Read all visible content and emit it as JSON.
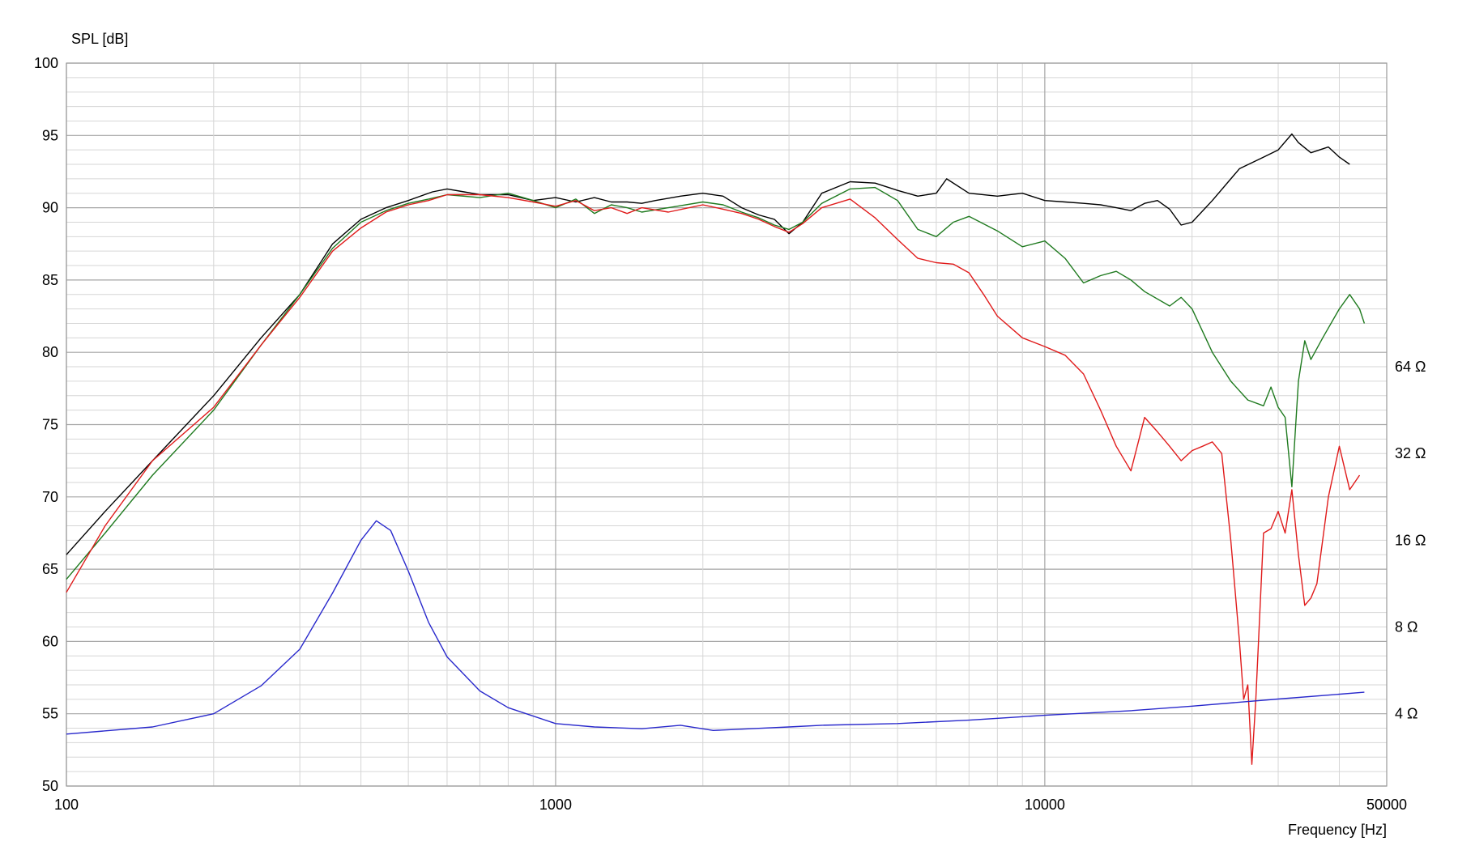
{
  "chart_data": {
    "type": "line",
    "ylabel": "SPL [dB]",
    "xlabel": "Frequency [Hz]",
    "x_scale": "log",
    "xlim": [
      100,
      50000
    ],
    "ylim": [
      50,
      100
    ],
    "x_tick_labels": [
      {
        "value": 100,
        "label": "100"
      },
      {
        "value": 1000,
        "label": "1000"
      },
      {
        "value": 10000,
        "label": "10000"
      },
      {
        "value": 50000,
        "label": "50000"
      }
    ],
    "y_ticks": [
      50,
      55,
      60,
      65,
      70,
      75,
      80,
      85,
      90,
      95,
      100
    ],
    "y2_ticks": [
      {
        "value": 4,
        "label": "4 Ω"
      },
      {
        "value": 8,
        "label": "8 Ω"
      },
      {
        "value": 16,
        "label": "16 Ω"
      },
      {
        "value": 32,
        "label": "32 Ω"
      },
      {
        "value": 64,
        "label": "64 Ω"
      }
    ],
    "y2_scale": "log2",
    "y2_reference": {
      "ohm_at_spl55": 4,
      "spl_per_octave": 6
    },
    "grid": true,
    "series": [
      {
        "color": "#000000",
        "axis": "spl",
        "points": [
          [
            100,
            66
          ],
          [
            120,
            69
          ],
          [
            150,
            72.5
          ],
          [
            200,
            77
          ],
          [
            250,
            81
          ],
          [
            300,
            84
          ],
          [
            350,
            87.5
          ],
          [
            400,
            89.2
          ],
          [
            450,
            90
          ],
          [
            500,
            90.5
          ],
          [
            560,
            91.1
          ],
          [
            600,
            91.3
          ],
          [
            650,
            91.1
          ],
          [
            700,
            90.9
          ],
          [
            800,
            90.9
          ],
          [
            900,
            90.5
          ],
          [
            1000,
            90.7
          ],
          [
            1100,
            90.4
          ],
          [
            1200,
            90.7
          ],
          [
            1300,
            90.4
          ],
          [
            1400,
            90.4
          ],
          [
            1500,
            90.3
          ],
          [
            1600,
            90.5
          ],
          [
            1800,
            90.8
          ],
          [
            2000,
            91
          ],
          [
            2200,
            90.8
          ],
          [
            2400,
            90
          ],
          [
            2600,
            89.5
          ],
          [
            2800,
            89.2
          ],
          [
            3000,
            88.2
          ],
          [
            3200,
            89
          ],
          [
            3500,
            91
          ],
          [
            4000,
            91.8
          ],
          [
            4500,
            91.7
          ],
          [
            5000,
            91.2
          ],
          [
            5500,
            90.8
          ],
          [
            6000,
            91
          ],
          [
            6300,
            92
          ],
          [
            7000,
            91
          ],
          [
            8000,
            90.8
          ],
          [
            9000,
            91
          ],
          [
            10000,
            90.5
          ],
          [
            11000,
            90.4
          ],
          [
            12000,
            90.3
          ],
          [
            13000,
            90.2
          ],
          [
            14000,
            90
          ],
          [
            15000,
            89.8
          ],
          [
            16000,
            90.3
          ],
          [
            17000,
            90.5
          ],
          [
            18000,
            89.9
          ],
          [
            19000,
            88.8
          ],
          [
            20000,
            89
          ],
          [
            22000,
            90.5
          ],
          [
            25000,
            92.7
          ],
          [
            28000,
            93.5
          ],
          [
            30000,
            94
          ],
          [
            32000,
            95.1
          ],
          [
            33000,
            94.5
          ],
          [
            35000,
            93.8
          ],
          [
            38000,
            94.2
          ],
          [
            40000,
            93.5
          ],
          [
            42000,
            93
          ]
        ]
      },
      {
        "color": "#1f7a1f",
        "axis": "spl",
        "points": [
          [
            100,
            64.3
          ],
          [
            120,
            67.5
          ],
          [
            150,
            71.5
          ],
          [
            200,
            76
          ],
          [
            250,
            80.5
          ],
          [
            300,
            84
          ],
          [
            350,
            87.2
          ],
          [
            400,
            89
          ],
          [
            450,
            89.8
          ],
          [
            500,
            90.3
          ],
          [
            550,
            90.6
          ],
          [
            600,
            90.9
          ],
          [
            700,
            90.7
          ],
          [
            800,
            91
          ],
          [
            900,
            90.5
          ],
          [
            1000,
            90
          ],
          [
            1100,
            90.6
          ],
          [
            1200,
            89.6
          ],
          [
            1300,
            90.2
          ],
          [
            1400,
            90
          ],
          [
            1500,
            89.7
          ],
          [
            1700,
            90
          ],
          [
            2000,
            90.4
          ],
          [
            2200,
            90.2
          ],
          [
            2400,
            89.7
          ],
          [
            2600,
            89.3
          ],
          [
            2800,
            88.8
          ],
          [
            3000,
            88.5
          ],
          [
            3200,
            89
          ],
          [
            3500,
            90.3
          ],
          [
            4000,
            91.3
          ],
          [
            4500,
            91.4
          ],
          [
            5000,
            90.5
          ],
          [
            5500,
            88.5
          ],
          [
            6000,
            88
          ],
          [
            6500,
            89
          ],
          [
            7000,
            89.4
          ],
          [
            8000,
            88.4
          ],
          [
            9000,
            87.3
          ],
          [
            10000,
            87.7
          ],
          [
            11000,
            86.5
          ],
          [
            12000,
            84.8
          ],
          [
            13000,
            85.3
          ],
          [
            14000,
            85.6
          ],
          [
            15000,
            85
          ],
          [
            16000,
            84.2
          ],
          [
            18000,
            83.2
          ],
          [
            19000,
            83.8
          ],
          [
            20000,
            83
          ],
          [
            22000,
            80
          ],
          [
            24000,
            78
          ],
          [
            26000,
            76.7
          ],
          [
            28000,
            76.3
          ],
          [
            29000,
            77.6
          ],
          [
            30000,
            76.2
          ],
          [
            31000,
            75.5
          ],
          [
            32000,
            70.7
          ],
          [
            33000,
            78
          ],
          [
            34000,
            80.8
          ],
          [
            35000,
            79.5
          ],
          [
            37000,
            81
          ],
          [
            40000,
            83
          ],
          [
            42000,
            84
          ],
          [
            44000,
            83
          ],
          [
            45000,
            82
          ]
        ]
      },
      {
        "color": "#e01b1b",
        "axis": "spl",
        "points": [
          [
            100,
            63.4
          ],
          [
            120,
            68
          ],
          [
            150,
            72.5
          ],
          [
            200,
            76.2
          ],
          [
            250,
            80.5
          ],
          [
            300,
            83.8
          ],
          [
            350,
            87
          ],
          [
            400,
            88.6
          ],
          [
            450,
            89.7
          ],
          [
            500,
            90.2
          ],
          [
            550,
            90.5
          ],
          [
            600,
            90.9
          ],
          [
            700,
            90.9
          ],
          [
            800,
            90.7
          ],
          [
            900,
            90.4
          ],
          [
            1000,
            90.1
          ],
          [
            1100,
            90.5
          ],
          [
            1200,
            89.8
          ],
          [
            1300,
            90
          ],
          [
            1400,
            89.6
          ],
          [
            1500,
            90
          ],
          [
            1700,
            89.7
          ],
          [
            2000,
            90.2
          ],
          [
            2200,
            89.9
          ],
          [
            2400,
            89.6
          ],
          [
            2600,
            89.2
          ],
          [
            2800,
            88.7
          ],
          [
            3000,
            88.3
          ],
          [
            3200,
            88.9
          ],
          [
            3500,
            90
          ],
          [
            4000,
            90.6
          ],
          [
            4500,
            89.3
          ],
          [
            5000,
            87.8
          ],
          [
            5500,
            86.5
          ],
          [
            6000,
            86.2
          ],
          [
            6500,
            86.1
          ],
          [
            7000,
            85.5
          ],
          [
            7500,
            84
          ],
          [
            8000,
            82.5
          ],
          [
            9000,
            81
          ],
          [
            10000,
            80.4
          ],
          [
            11000,
            79.8
          ],
          [
            12000,
            78.5
          ],
          [
            13000,
            76
          ],
          [
            14000,
            73.5
          ],
          [
            15000,
            71.8
          ],
          [
            16000,
            75.5
          ],
          [
            17000,
            74.5
          ],
          [
            18000,
            73.5
          ],
          [
            19000,
            72.5
          ],
          [
            20000,
            73.2
          ],
          [
            21000,
            73.5
          ],
          [
            22000,
            73.8
          ],
          [
            23000,
            73
          ],
          [
            24000,
            67
          ],
          [
            25000,
            60
          ],
          [
            25500,
            56
          ],
          [
            26000,
            57
          ],
          [
            26500,
            51.5
          ],
          [
            27000,
            56
          ],
          [
            28000,
            67.5
          ],
          [
            29000,
            67.8
          ],
          [
            30000,
            69
          ],
          [
            31000,
            67.5
          ],
          [
            32000,
            70.5
          ],
          [
            33000,
            66
          ],
          [
            34000,
            62.5
          ],
          [
            35000,
            63
          ],
          [
            36000,
            64
          ],
          [
            38000,
            70
          ],
          [
            40000,
            73.5
          ],
          [
            42000,
            70.5
          ],
          [
            44000,
            71.5
          ]
        ]
      },
      {
        "color": "#2929cc",
        "axis": "impedance",
        "points": [
          [
            100,
            3.4
          ],
          [
            150,
            3.6
          ],
          [
            200,
            4
          ],
          [
            250,
            5
          ],
          [
            300,
            6.7
          ],
          [
            350,
            10.5
          ],
          [
            400,
            16
          ],
          [
            430,
            18.7
          ],
          [
            460,
            17.3
          ],
          [
            500,
            12.5
          ],
          [
            550,
            8.3
          ],
          [
            600,
            6.3
          ],
          [
            700,
            4.8
          ],
          [
            800,
            4.2
          ],
          [
            1000,
            3.7
          ],
          [
            1200,
            3.6
          ],
          [
            1500,
            3.55
          ],
          [
            1800,
            3.65
          ],
          [
            2100,
            3.5
          ],
          [
            2500,
            3.55
          ],
          [
            3000,
            3.6
          ],
          [
            3500,
            3.65
          ],
          [
            5000,
            3.7
          ],
          [
            7000,
            3.8
          ],
          [
            10000,
            3.95
          ],
          [
            15000,
            4.1
          ],
          [
            20000,
            4.25
          ],
          [
            30000,
            4.5
          ],
          [
            45000,
            4.75
          ]
        ]
      }
    ]
  }
}
